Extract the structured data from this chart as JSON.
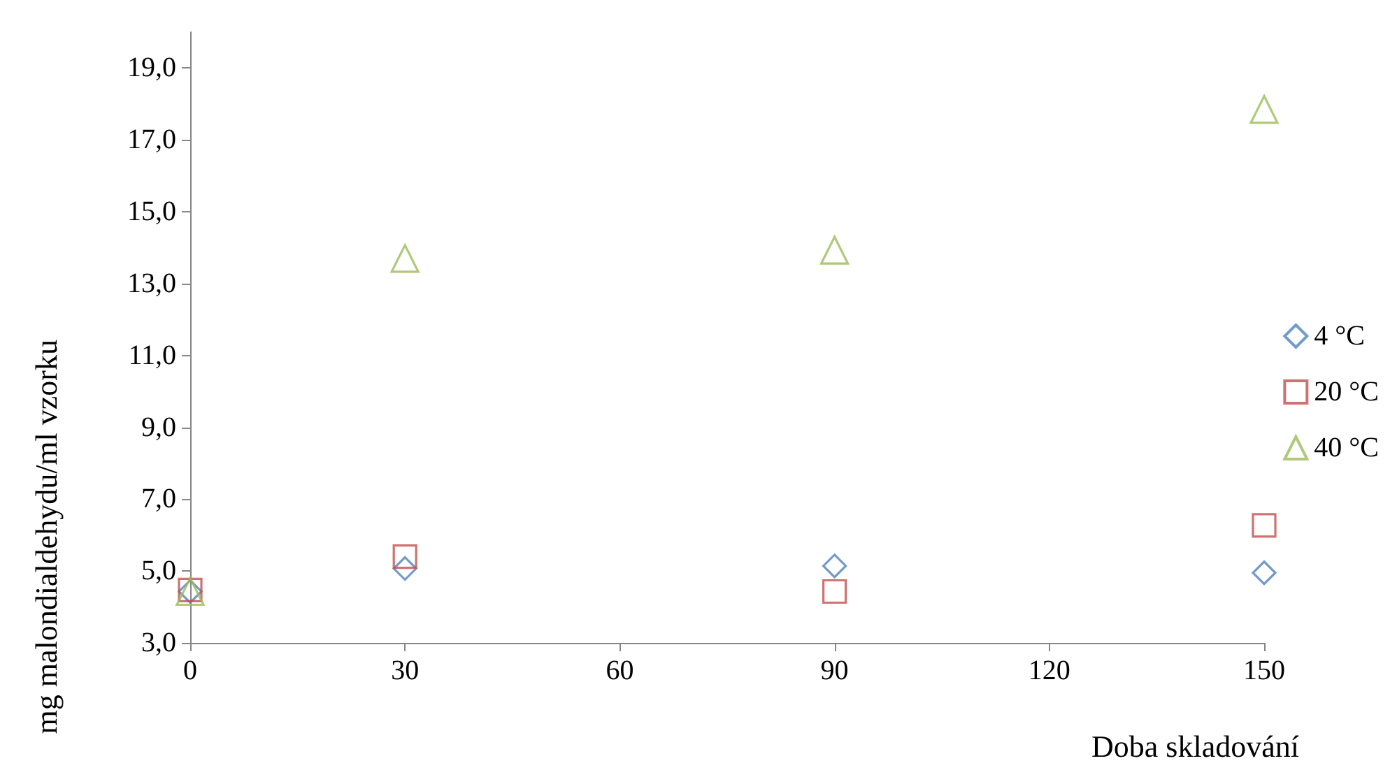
{
  "chart_data": {
    "type": "scatter",
    "xlabel": "Doba skladování",
    "ylabel": "mg malondialdehydu/ml vzorku",
    "x": [
      0,
      30,
      90,
      150
    ],
    "series": [
      {
        "name": "4 °C",
        "color": "#4f81bd",
        "marker": "diamond",
        "values": [
          4.43,
          5.07,
          5.14,
          4.95
        ]
      },
      {
        "name": "20 °C",
        "color": "#c0504d",
        "marker": "square",
        "values": [
          4.47,
          5.4,
          4.43,
          6.27
        ]
      },
      {
        "name": "40 °C",
        "color": "#9bbb59",
        "marker": "triangle",
        "values": [
          4.43,
          13.7,
          13.93,
          17.85
        ]
      }
    ],
    "xlim": [
      0,
      150
    ],
    "xticks": [
      0,
      30,
      60,
      90,
      120,
      150
    ],
    "ylim": [
      3,
      20
    ],
    "yticks": [
      {
        "value": 3,
        "label": "3,0"
      },
      {
        "value": 5,
        "label": "5,0"
      },
      {
        "value": 7,
        "label": "7,0"
      },
      {
        "value": 9,
        "label": "9,0"
      },
      {
        "value": 11,
        "label": "11,0"
      },
      {
        "value": 13,
        "label": "13,0"
      },
      {
        "value": 15,
        "label": "15,0"
      },
      {
        "value": 17,
        "label": "17,0"
      },
      {
        "value": 19,
        "label": "19,0"
      }
    ],
    "grid": false,
    "legend": "right"
  }
}
